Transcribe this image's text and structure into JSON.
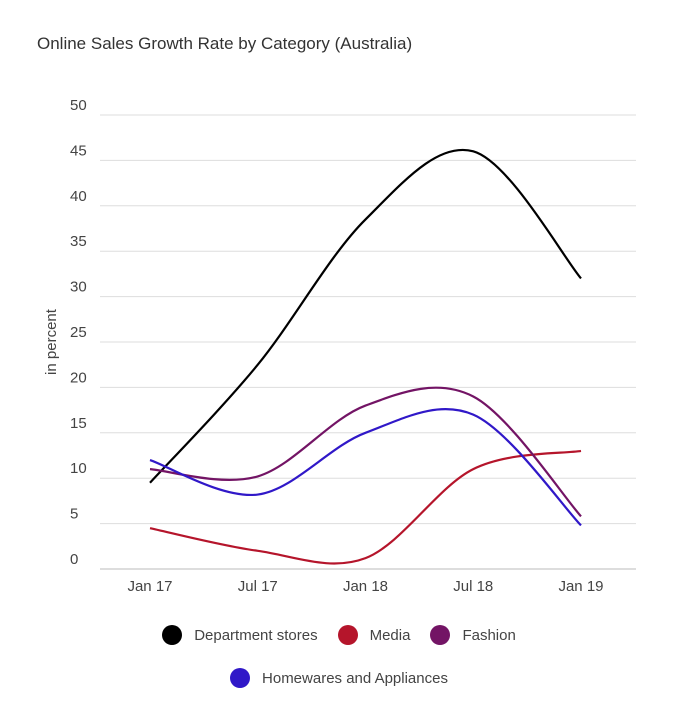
{
  "chart_data": {
    "type": "line",
    "title": "Online Sales Growth Rate by Category (Australia)",
    "xlabel": "",
    "ylabel": "in percent",
    "categories": [
      "Jan 17",
      "Jul 17",
      "Jan 18",
      "Jul 18",
      "Jan 19"
    ],
    "ylim": [
      0,
      50
    ],
    "yticks": [
      0,
      5,
      10,
      15,
      20,
      25,
      30,
      35,
      40,
      45,
      50
    ],
    "grid": true,
    "legend": "bottom",
    "series": [
      {
        "name": "Department stores",
        "color": "#000000",
        "values": [
          9.5,
          22.5,
          38.5,
          46,
          32
        ]
      },
      {
        "name": "Media",
        "color": "#b5152b",
        "values": [
          4.5,
          2,
          1.2,
          11,
          13
        ]
      },
      {
        "name": "Fashion",
        "color": "#731465",
        "values": [
          11,
          10.2,
          18,
          19,
          5.8
        ]
      },
      {
        "name": "Homewares and Appliances",
        "color": "#3018c8",
        "values": [
          12,
          8.2,
          15,
          17,
          4.8
        ]
      }
    ]
  }
}
